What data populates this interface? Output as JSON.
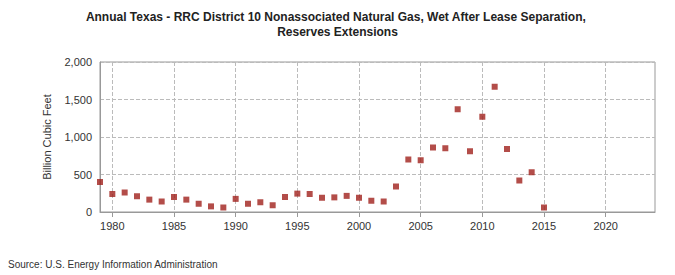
{
  "chart_data": {
    "type": "scatter",
    "title": "Annual Texas - RRC District 10 Nonassociated Natural Gas, Wet After Lease Separation, Reserves Extensions",
    "y_label": "Billion Cubic Feet",
    "annotation": "Source: U.S. Energy Information Administration",
    "x": [
      1979,
      1980,
      1981,
      1982,
      1983,
      1984,
      1985,
      1986,
      1987,
      1988,
      1989,
      1990,
      1991,
      1992,
      1993,
      1994,
      1995,
      1996,
      1997,
      1998,
      1999,
      2000,
      2001,
      2002,
      2003,
      2004,
      2005,
      2006,
      2007,
      2008,
      2009,
      2010,
      2011,
      2012,
      2013,
      2014,
      2015
    ],
    "values": [
      400,
      240,
      260,
      210,
      165,
      140,
      200,
      165,
      110,
      75,
      60,
      175,
      110,
      130,
      90,
      200,
      245,
      240,
      190,
      195,
      215,
      190,
      150,
      140,
      340,
      700,
      690,
      860,
      850,
      1370,
      810,
      1270,
      1670,
      840,
      420,
      530,
      60
    ],
    "color": "#a0201c",
    "marker": "square",
    "xlim": [
      1979,
      2024
    ],
    "xticks": [
      1980,
      1985,
      1990,
      1995,
      2000,
      2005,
      2010,
      2015,
      2020
    ],
    "ylim": [
      0,
      2000
    ],
    "yticks": [
      0,
      500,
      {
        "value": 1000,
        "label": "1,000"
      },
      {
        "value": 1500,
        "label": "1,500"
      },
      {
        "value": 2000,
        "label": "2,000"
      }
    ],
    "grid": true
  }
}
